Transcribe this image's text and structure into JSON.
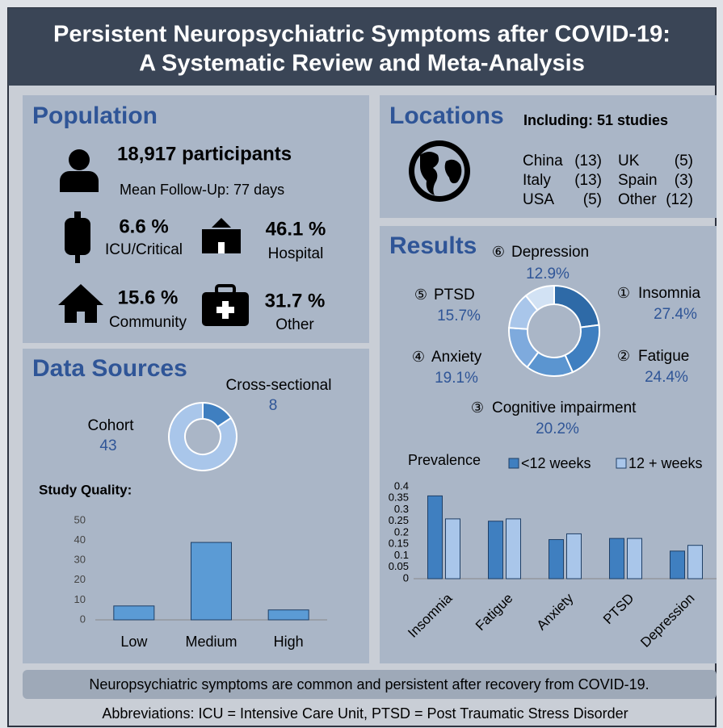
{
  "title": [
    "Persistent Neuropsychiatric Symptoms after COVID-19:",
    "A Systematic Review and Meta-Analysis"
  ],
  "population": {
    "heading": "Population",
    "participants": "18,917 participants",
    "follow_up": "Mean Follow-Up: 77 days",
    "settings": [
      {
        "value": "6.6 %",
        "label": "ICU/Critical"
      },
      {
        "value": "46.1 %",
        "label": "Hospital"
      },
      {
        "value": "15.6 %",
        "label": "Community"
      },
      {
        "value": "31.7 %",
        "label": "Other"
      }
    ]
  },
  "locations": {
    "heading": "Locations",
    "studies": "Including: 51 studies",
    "countries": [
      {
        "name": "China",
        "count": "(13)"
      },
      {
        "name": "UK",
        "count": "(5)"
      },
      {
        "name": "Italy",
        "count": "(13)"
      },
      {
        "name": "Spain",
        "count": "(3)"
      },
      {
        "name": "USA",
        "count": "(5)"
      },
      {
        "name": "Other",
        "count": "(12)"
      }
    ]
  },
  "data_sources": {
    "heading": "Data Sources",
    "donut": {
      "type": "pie",
      "categories": [
        "Cohort",
        "Cross-sectional"
      ],
      "values": [
        43,
        8
      ],
      "colors": [
        "#a9c6ea",
        "#3f7fc0"
      ]
    },
    "quality": {
      "type": "bar",
      "title": "Study Quality:",
      "categories": [
        "Low",
        "Medium",
        "High"
      ],
      "values": [
        7,
        39,
        5
      ],
      "color": "#5b9bd5",
      "ylim": [
        0,
        50
      ],
      "yticks": [
        0,
        10,
        20,
        30,
        40,
        50
      ]
    }
  },
  "results": {
    "heading": "Results",
    "donut": {
      "type": "pie",
      "markers": [
        "①",
        "②",
        "③",
        "④",
        "⑤",
        "⑥"
      ],
      "categories": [
        "Insomnia",
        "Fatigue",
        "Cognitive impairment",
        "Anxiety",
        "PTSD",
        "Depression"
      ],
      "values": [
        27.4,
        24.4,
        20.2,
        19.1,
        15.7,
        12.9
      ],
      "value_labels": [
        "27.4%",
        "24.4%",
        "20.2%",
        "19.1%",
        "15.7%",
        "12.9%"
      ],
      "colors": [
        "#2e6aa7",
        "#3f7fc0",
        "#5b95d0",
        "#7eaadd",
        "#a9c6ea",
        "#d2e2f4"
      ]
    },
    "prevalence": {
      "type": "bar",
      "title": "Prevalence",
      "categories": [
        "Insomnia",
        "Fatigue",
        "Anxiety",
        "PTSD",
        "Depression"
      ],
      "series": [
        {
          "name": "<12 weeks",
          "color": "#3f7fc0",
          "values": [
            0.36,
            0.25,
            0.17,
            0.175,
            0.12
          ]
        },
        {
          "name": "12 + weeks",
          "color": "#a9c6ea",
          "values": [
            0.26,
            0.26,
            0.195,
            0.175,
            0.145
          ]
        }
      ],
      "ylim": [
        0,
        0.4
      ],
      "yticks": [
        0,
        0.05,
        0.1,
        0.15,
        0.2,
        0.25,
        0.3,
        0.35,
        0.4
      ]
    }
  },
  "conclusion": "Neuropsychiatric symptoms are common and persistent after recovery from COVID-19.",
  "abbreviations": "Abbreviations: ICU = Intensive Care Unit, PTSD = Post Traumatic Stress Disorder"
}
